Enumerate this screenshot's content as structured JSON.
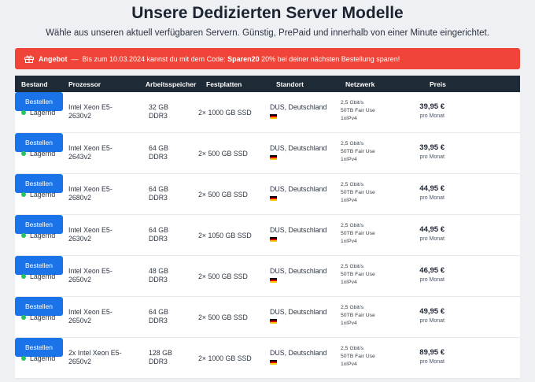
{
  "header": {
    "title": "Unsere Dedizierten Server Modelle",
    "subtitle": "Wähle aus unseren aktuell verfügbaren Servern. Günstig, PrePaid und innerhalb von einer Minute eingerichtet."
  },
  "promo": {
    "label": "Angebot",
    "separator": "—",
    "text_before": "Bis zum 10.03.2024 kannst du mit dem Code:",
    "code": "Sparen20",
    "text_after": "20% bei deiner nächsten Bestellung sparen!",
    "color": "#f04438"
  },
  "table": {
    "headers": {
      "status": "Bestand",
      "cpu": "Prozessor",
      "ram": "Arbeitsspeicher",
      "disk": "Festplatten",
      "location": "Standort",
      "network": "Netzwerk",
      "price": "Preis"
    },
    "rows": [
      {
        "status": "Lagernd",
        "cpu": "Intel Xeon E5-2630v2",
        "ram": "32 GB DDR3",
        "disk": "2× 1000 GB SSD",
        "location": "DUS, Deutschland",
        "net1": "2,5 Gbit/s",
        "net2": "50TB Fair Use",
        "net3": "1xIPv4",
        "price": "39,95 €",
        "per": "pro Monat",
        "button": "Bestellen"
      },
      {
        "status": "Lagernd",
        "cpu": "Intel Xeon E5-2643v2",
        "ram": "64 GB DDR3",
        "disk": "2× 500 GB SSD",
        "location": "DUS, Deutschland",
        "net1": "2,5 Gbit/s",
        "net2": "50TB Fair Use",
        "net3": "1xIPv4",
        "price": "39,95 €",
        "per": "pro Monat",
        "button": "Bestellen"
      },
      {
        "status": "Lagernd",
        "cpu": "Intel Xeon E5-2680v2",
        "ram": "64 GB DDR3",
        "disk": "2× 500 GB SSD",
        "location": "DUS, Deutschland",
        "net1": "2,5 Gbit/s",
        "net2": "50TB Fair Use",
        "net3": "1xIPv4",
        "price": "44,95 €",
        "per": "pro Monat",
        "button": "Bestellen"
      },
      {
        "status": "Lagernd",
        "cpu": "Intel Xeon E5-2630v2",
        "ram": "64 GB DDR3",
        "disk": "2× 1050 GB SSD",
        "location": "DUS, Deutschland",
        "net1": "2,5 Gbit/s",
        "net2": "50TB Fair Use",
        "net3": "1xIPv4",
        "price": "44,95 €",
        "per": "pro Monat",
        "button": "Bestellen"
      },
      {
        "status": "Lagernd",
        "cpu": "Intel Xeon E5-2650v2",
        "ram": "48 GB DDR3",
        "disk": "2× 500 GB SSD",
        "location": "DUS, Deutschland",
        "net1": "2,5 Gbit/s",
        "net2": "50TB Fair Use",
        "net3": "1xIPv4",
        "price": "46,95 €",
        "per": "pro Monat",
        "button": "Bestellen"
      },
      {
        "status": "Lagernd",
        "cpu": "Intel Xeon E5-2650v2",
        "ram": "64 GB DDR3",
        "disk": "2× 500 GB SSD",
        "location": "DUS, Deutschland",
        "net1": "2,5 Gbit/s",
        "net2": "50TB Fair Use",
        "net3": "1xIPv4",
        "price": "49,95 €",
        "per": "pro Monat",
        "button": "Bestellen"
      },
      {
        "status": "Lagernd",
        "cpu": "2x Intel Xeon E5-2650v2",
        "ram": "128 GB DDR3",
        "disk": "2× 1000 GB SSD",
        "location": "DUS, Deutschland",
        "net1": "2,5 Gbit/s",
        "net2": "50TB Fair Use",
        "net3": "1xIPv4",
        "price": "89,95 €",
        "per": "pro Monat",
        "button": "Bestellen"
      }
    ]
  },
  "icons": {
    "promo": "gift-icon",
    "flag": "germany-flag-icon",
    "status": "in-stock-dot-icon"
  },
  "colors": {
    "accent": "#1a73e8",
    "header_bg": "#1e2a36",
    "in_stock": "#22c55e"
  }
}
